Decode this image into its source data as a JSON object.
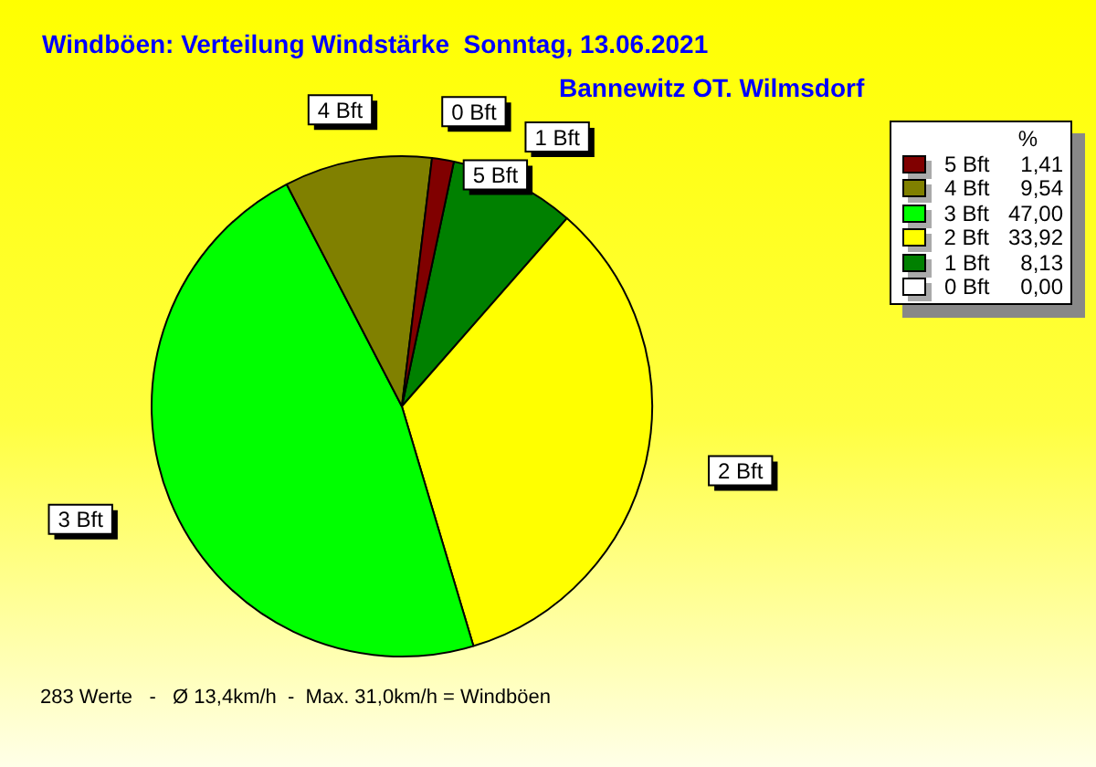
{
  "chart_data": {
    "type": "pie",
    "title": "Windböen: Verteilung Windstärke  Sonntag, 13.06.2021",
    "subtitle": "Bannewitz OT. Wilmsdorf",
    "categories": [
      "5 Bft",
      "4 Bft",
      "3 Bft",
      "2 Bft",
      "1 Bft",
      "0 Bft"
    ],
    "values": [
      1.41,
      9.54,
      47.0,
      33.92,
      8.13,
      0.0
    ],
    "colors": [
      "#800000",
      "#808000",
      "#00ff00",
      "#ffff00",
      "#008000",
      "#ffffff"
    ],
    "value_labels": [
      "1,41",
      "9,54",
      "47,00",
      "33,92",
      "8,13",
      "0,00"
    ],
    "legend": "top right",
    "legend_title": "%",
    "annotations": [
      "283 Werte   -   Ø 13,4km/h  -  Max. 31,0km/h = Windböen"
    ]
  }
}
